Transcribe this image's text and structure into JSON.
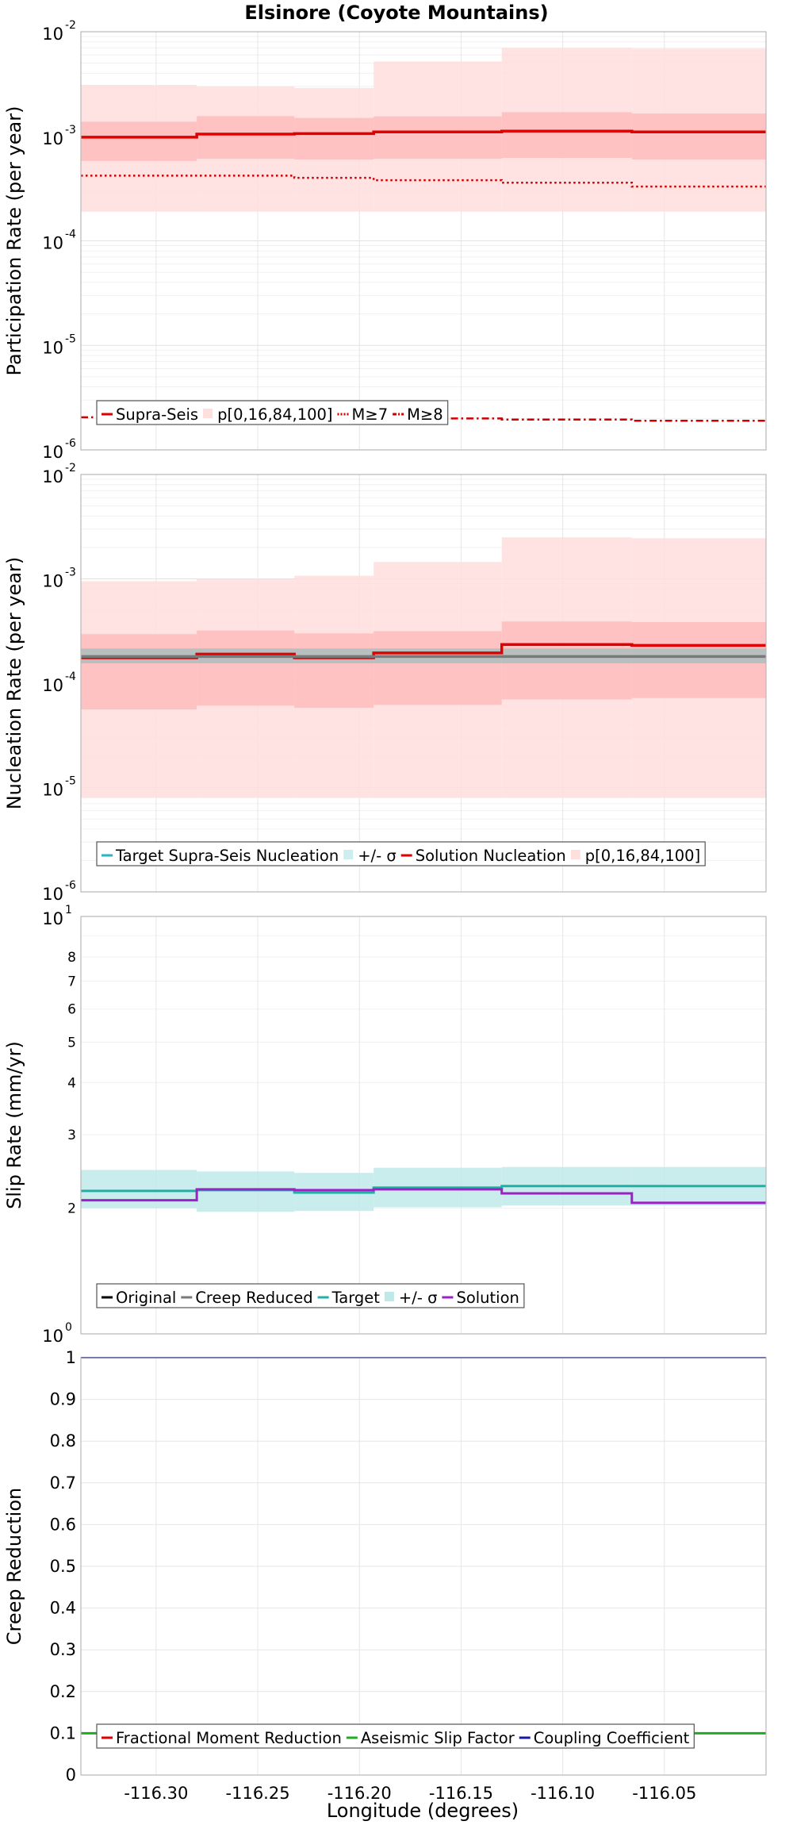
{
  "title": "Elsinore (Coyote Mountains)",
  "xlabel": "Longitude (degrees)",
  "x_ticks": [
    -116.3,
    -116.25,
    -116.2,
    -116.15,
    -116.1,
    -116.05
  ],
  "x_tick_labels": [
    "-116.30",
    "-116.25",
    "-116.20",
    "-116.15",
    "-116.10",
    "-116.05"
  ],
  "x_range": [
    -116.337,
    -116.0
  ],
  "subsection_bounds": [
    -116.337,
    -116.28,
    -116.232,
    -116.193,
    -116.13,
    -116.066,
    -116.0
  ],
  "chart_data": [
    {
      "type": "line",
      "name": "participation",
      "ylabel": "Participation Rate (per year)",
      "yscale": "log",
      "ylim": [
        1e-06,
        0.01
      ],
      "y_ticks": [
        {
          "base": "10",
          "exp": "-6",
          "v": 1e-06
        },
        {
          "base": "10",
          "exp": "-5",
          "v": 1e-05
        },
        {
          "base": "10",
          "exp": "-4",
          "v": 0.0001
        },
        {
          "base": "10",
          "exp": "-3",
          "v": 0.001
        },
        {
          "base": "10",
          "exp": "-2",
          "v": 0.01
        }
      ],
      "bands": [
        {
          "name": "p[0,16,84,100] outer",
          "color": "#ffdddd",
          "lower": [
            0.00019,
            0.00019,
            0.00019,
            0.00019,
            0.00019,
            0.00019
          ],
          "upper": [
            0.0031,
            0.003,
            0.0029,
            0.0052,
            0.007,
            0.0069
          ]
        },
        {
          "name": "p[0,16,84,100] inner",
          "color": "#ffbcbc",
          "lower": [
            0.00058,
            0.00061,
            0.0006,
            0.00061,
            0.00062,
            0.0006
          ],
          "upper": [
            0.00138,
            0.00156,
            0.0015,
            0.00155,
            0.0017,
            0.00165
          ]
        }
      ],
      "series": [
        {
          "name": "Supra-Seis",
          "color": "#e00000",
          "dash": "solid",
          "width": 3.5,
          "values": [
            0.00098,
            0.00105,
            0.00106,
            0.0011,
            0.00112,
            0.0011
          ]
        },
        {
          "name": "M≥7",
          "color": "#cc0000",
          "dash": "dotted",
          "width": 2.5,
          "values": [
            0.00042,
            0.00042,
            0.0004,
            0.00038,
            0.00036,
            0.00033
          ]
        },
        {
          "name": "M≥8",
          "color": "#cc0000",
          "dash": "dashdot",
          "width": 2.5,
          "values": [
            2.05e-06,
            2e-06,
            2e-06,
            2e-06,
            1.95e-06,
            1.9e-06
          ]
        }
      ],
      "legend": [
        {
          "label": "Supra-Seis",
          "color": "#e00000",
          "kind": "line"
        },
        {
          "label": "p[0,16,84,100]",
          "color": "#ffdede",
          "kind": "patch"
        },
        {
          "label": "M≥7",
          "color": "#cc0000",
          "kind": "dotted"
        },
        {
          "label": "M≥8",
          "color": "#cc0000",
          "kind": "dashdot"
        }
      ]
    },
    {
      "type": "line",
      "name": "nucleation",
      "ylabel": "Nucleation Rate (per year)",
      "yscale": "log",
      "ylim": [
        1e-06,
        0.01
      ],
      "y_ticks": [
        {
          "base": "10",
          "exp": "-6",
          "v": 1e-06
        },
        {
          "base": "10",
          "exp": "-5",
          "v": 1e-05
        },
        {
          "base": "10",
          "exp": "-4",
          "v": 0.0001
        },
        {
          "base": "10",
          "exp": "-3",
          "v": 0.001
        },
        {
          "base": "10",
          "exp": "-2",
          "v": 0.01
        }
      ],
      "bands": [
        {
          "name": "p[0,16,84,100] outer",
          "color": "#ffdddd",
          "lower": [
            8e-06,
            8e-06,
            8e-06,
            8e-06,
            8e-06,
            8e-06
          ],
          "upper": [
            0.00095,
            0.001,
            0.00107,
            0.00145,
            0.0025,
            0.00245
          ]
        },
        {
          "name": "p[0,16,84,100] inner",
          "color": "#ffbcbc",
          "lower": [
            5.6e-05,
            6.1e-05,
            5.8e-05,
            6.2e-05,
            7e-05,
            7.2e-05
          ],
          "upper": [
            0.000295,
            0.00032,
            0.0003,
            0.000315,
            0.00039,
            0.000385
          ]
        },
        {
          "name": "+/- σ",
          "color": "#aabebe",
          "lower": [
            0.000155,
            0.000155,
            0.000155,
            0.000155,
            0.000155,
            0.000155
          ],
          "upper": [
            0.000215,
            0.000215,
            0.000215,
            0.000215,
            0.000215,
            0.000215
          ]
        }
      ],
      "series": [
        {
          "name": "Solution Nucleation",
          "color": "#e00000",
          "dash": "solid",
          "width": 3.5,
          "values": [
            0.000175,
            0.00019,
            0.000175,
            0.000195,
            0.000235,
            0.00023
          ]
        },
        {
          "name": "Target Supra-Seis Nucleation",
          "color": "#7a7a7a",
          "dash": "solid",
          "width": 3.5,
          "values": [
            0.00018,
            0.00018,
            0.00018,
            0.00018,
            0.00018,
            0.00018
          ]
        }
      ],
      "legend": [
        {
          "label": "Target Supra-Seis Nucleation",
          "color": "#2bb3c0",
          "kind": "line"
        },
        {
          "label": "+/- σ",
          "color": "#cdeeee",
          "kind": "patch"
        },
        {
          "label": "Solution Nucleation",
          "color": "#e00000",
          "kind": "line"
        },
        {
          "label": "p[0,16,84,100]",
          "color": "#ffdede",
          "kind": "patch"
        }
      ]
    },
    {
      "type": "line",
      "name": "slip",
      "ylabel": "Slip Rate (mm/yr)",
      "yscale": "log",
      "ylim": [
        1,
        10
      ],
      "y_ticks": [
        {
          "base": "10",
          "exp": "0",
          "v": 1
        },
        {
          "base": "10",
          "exp": "1",
          "v": 10
        }
      ],
      "y_minor_labels": [
        {
          "label": "2",
          "v": 2
        },
        {
          "label": "3",
          "v": 3
        },
        {
          "label": "4",
          "v": 4
        },
        {
          "label": "5",
          "v": 5
        },
        {
          "label": "6",
          "v": 6
        },
        {
          "label": "7",
          "v": 7
        },
        {
          "label": "8",
          "v": 8
        }
      ],
      "bands": [
        {
          "name": "+/- σ",
          "color": "#bfe9e9",
          "lower": [
            2.0,
            1.96,
            1.97,
            2.01,
            2.03,
            2.03
          ],
          "upper": [
            2.47,
            2.45,
            2.43,
            2.5,
            2.51,
            2.51
          ]
        }
      ],
      "series": [
        {
          "name": "Target",
          "color": "#1fb0a8",
          "dash": "solid",
          "width": 3,
          "values": [
            2.2,
            2.21,
            2.18,
            2.24,
            2.26,
            2.26
          ]
        },
        {
          "name": "Solution",
          "color": "#a020c8",
          "dash": "solid",
          "width": 3,
          "values": [
            2.09,
            2.22,
            2.21,
            2.22,
            2.17,
            2.06
          ]
        }
      ],
      "legend": [
        {
          "label": "Original",
          "color": "#000000",
          "kind": "line"
        },
        {
          "label": "Creep Reduced",
          "color": "#7a7a7a",
          "kind": "line"
        },
        {
          "label": "Target",
          "color": "#1fb0a8",
          "kind": "line"
        },
        {
          "label": "+/- σ",
          "color": "#bfe9e9",
          "kind": "patch"
        },
        {
          "label": "Solution",
          "color": "#a020c8",
          "kind": "line"
        }
      ]
    },
    {
      "type": "line",
      "name": "creep",
      "ylabel": "Creep Reduction",
      "yscale": "linear",
      "ylim": [
        0,
        1
      ],
      "y_ticks": [
        {
          "label": "0",
          "v": 0
        },
        {
          "label": "0.1",
          "v": 0.1
        },
        {
          "label": "0.2",
          "v": 0.2
        },
        {
          "label": "0.3",
          "v": 0.3
        },
        {
          "label": "0.4",
          "v": 0.4
        },
        {
          "label": "0.5",
          "v": 0.5
        },
        {
          "label": "0.6",
          "v": 0.6
        },
        {
          "label": "0.7",
          "v": 0.7
        },
        {
          "label": "0.8",
          "v": 0.8
        },
        {
          "label": "0.9",
          "v": 0.9
        },
        {
          "label": "1",
          "v": 1
        }
      ],
      "bands": [],
      "series": [
        {
          "name": "Aseismic Slip Factor",
          "color": "#22aa22",
          "dash": "solid",
          "width": 3,
          "values": [
            0.1,
            0.1,
            0.1,
            0.1,
            0.1,
            0.1
          ]
        },
        {
          "name": "Coupling Coefficient",
          "color": "#1a1aa0",
          "dash": "solid",
          "width": 2,
          "values": [
            1,
            1,
            1,
            1,
            1,
            1
          ]
        }
      ],
      "legend": [
        {
          "label": "Fractional Moment Reduction",
          "color": "#e00000",
          "kind": "line"
        },
        {
          "label": "Aseismic Slip Factor",
          "color": "#22aa22",
          "kind": "line"
        },
        {
          "label": "Coupling Coefficient",
          "color": "#1a1aa0",
          "kind": "line"
        }
      ]
    }
  ]
}
